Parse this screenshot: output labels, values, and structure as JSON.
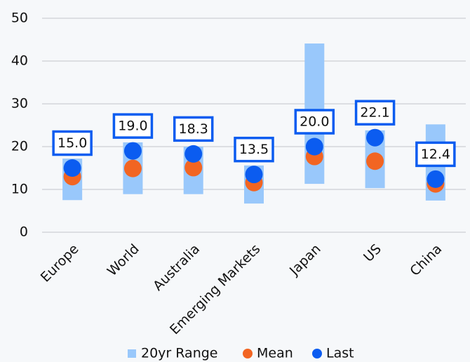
{
  "chart_data": {
    "type": "range-dot",
    "categories": [
      "Europe",
      "World",
      "Australia",
      "Emerging Markets",
      "Japan",
      "US",
      "China"
    ],
    "series": [
      {
        "name": "20yr Range",
        "color": "#99c8fb",
        "low": [
          7.5,
          8.9,
          8.9,
          6.7,
          11.3,
          10.3,
          7.4
        ],
        "high": [
          17.2,
          21,
          20,
          15.6,
          44.1,
          23.8,
          25.2
        ]
      },
      {
        "name": "Mean",
        "color": "#f26522",
        "values": [
          13.0,
          14.9,
          15.1,
          11.6,
          17.7,
          16.6,
          11.3
        ]
      },
      {
        "name": "Last",
        "color": "#0b5cf0",
        "values": [
          15,
          19,
          18.3,
          13.5,
          20,
          22.1,
          12.4
        ],
        "value_labels": [
          "15.0",
          "19.0",
          "18.3",
          "13.5",
          "20.0",
          "22.1",
          "12.4"
        ]
      }
    ],
    "ylim": [
      0,
      50
    ],
    "yticks": [
      0,
      10,
      20,
      30,
      40,
      50
    ],
    "grid": true,
    "legend": "bottom"
  }
}
